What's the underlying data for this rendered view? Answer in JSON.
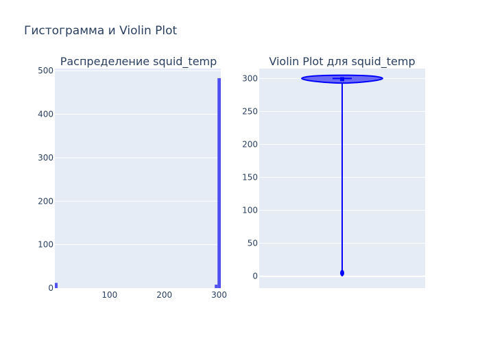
{
  "figure_title": "Гистограмма и Violin Plot",
  "colors": {
    "plot_bg": "#e5ecf6",
    "grid": "#ffffff",
    "hist_bar": "#5050f0",
    "violin_stroke": "#0000ff",
    "violin_fill": "#6a6af2",
    "text": "#2a3f5f"
  },
  "chart_data": [
    {
      "type": "bar",
      "title": "Распределение squid_temp",
      "xlabel": "",
      "ylabel": "",
      "xlim": [
        0,
        303
      ],
      "ylim": [
        0,
        505
      ],
      "x_ticks": [
        100,
        200,
        300
      ],
      "y_ticks": [
        0,
        100,
        200,
        300,
        400,
        500
      ],
      "bars": [
        {
          "x0": 0,
          "x1": 5,
          "value": 12
        },
        {
          "x0": 292,
          "x1": 297,
          "value": 8
        },
        {
          "x0": 297,
          "x1": 303,
          "value": 483
        }
      ],
      "grid": true
    },
    {
      "type": "violin",
      "title": "Violin Plot для squid_temp",
      "xlabel": "",
      "ylabel": "",
      "ylim": [
        -18,
        315
      ],
      "y_ticks": [
        0,
        50,
        100,
        150,
        200,
        250,
        300
      ],
      "series": [
        {
          "min": 0,
          "max": 305,
          "q1": 296,
          "median": 300,
          "q3": 302,
          "outlier_cluster": 5
        }
      ],
      "grid": true
    }
  ]
}
